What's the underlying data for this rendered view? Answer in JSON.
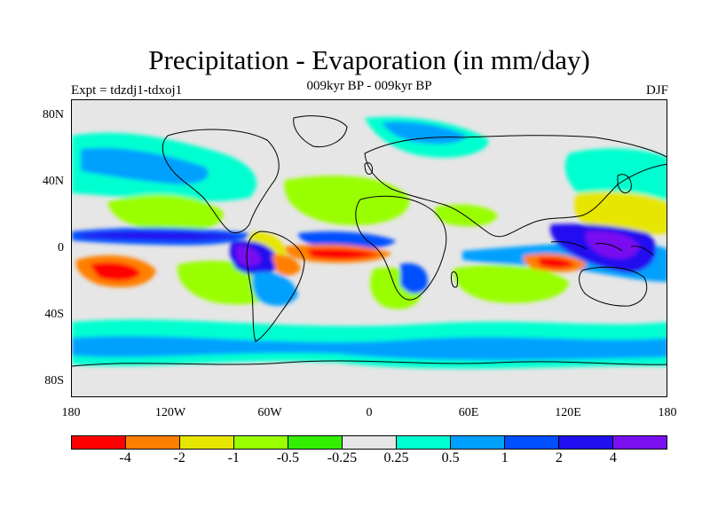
{
  "title": "Precipitation - Evaporation (in mm/day)",
  "experiment": "Expt = tdzdj1-tdxoj1",
  "period": "009kyr BP - 009kyr BP",
  "season": "DJF",
  "y_axis_labels": [
    "80N",
    "40N",
    "0",
    "40S",
    "80S"
  ],
  "x_axis_labels": [
    "180",
    "120W",
    "60W",
    "0",
    "60E",
    "120E",
    "180"
  ],
  "colorbar": {
    "colors": [
      "#ff0000",
      "#ff8000",
      "#e6e600",
      "#99ff00",
      "#33ee00",
      "#e6e6e6",
      "#00ffd0",
      "#00a0ff",
      "#0050ff",
      "#2010f0",
      "#7a10f0"
    ],
    "labels": [
      "-4",
      "-2",
      "-1",
      "-0.5",
      "-0.25",
      "0.25",
      "0.5",
      "1",
      "2",
      "4"
    ]
  },
  "map": {
    "background_color": "#e6e6e6",
    "projection": "equirectangular",
    "lon_range": [
      -180,
      180
    ],
    "lat_range": [
      -90,
      90
    ]
  }
}
